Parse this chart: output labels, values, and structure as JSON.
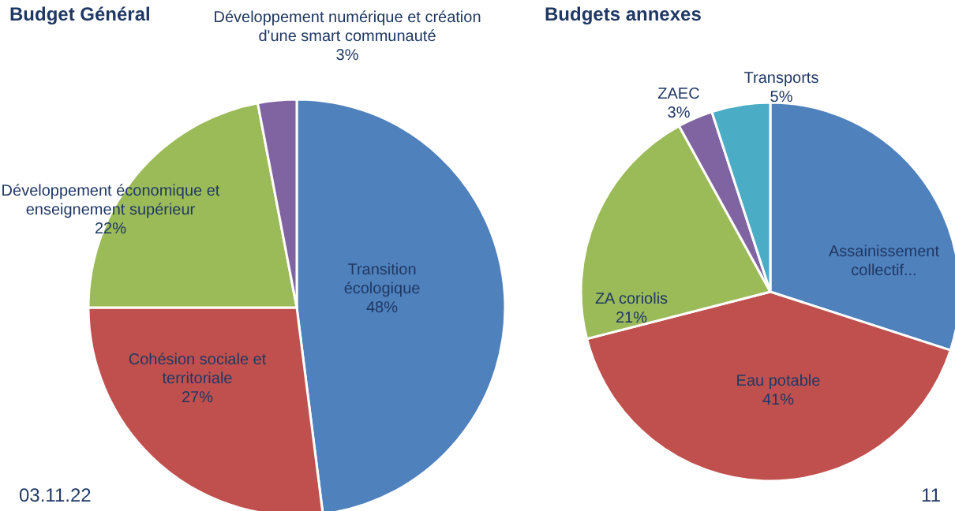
{
  "chart_data": [
    {
      "type": "pie",
      "title": "Budget Général",
      "categories": [
        "Transition écologique",
        "Cohésion sociale et territoriale",
        "Développement économique et enseignement supérieur",
        "Développement numérique et création d'une smart communauté"
      ],
      "values": [
        48,
        27,
        22,
        3
      ],
      "colors": [
        "#4f81bd",
        "#c0504d",
        "#9bbb59",
        "#8064a2"
      ],
      "value_labels": [
        "48%",
        "27%",
        "22%",
        "3%"
      ],
      "annotations": [
        "03.11.22"
      ]
    },
    {
      "type": "pie",
      "title": "Budgets annexes",
      "categories": [
        "Assainissement collectif...",
        "Eau potable",
        "ZA coriolis",
        "ZAEC",
        "Transports"
      ],
      "values": [
        30,
        41,
        21,
        3,
        5
      ],
      "colors": [
        "#4f81bd",
        "#c0504d",
        "#9bbb59",
        "#8064a2",
        "#4bacc6"
      ],
      "value_labels": [
        null,
        "41%",
        "21%",
        "3%",
        "5%"
      ],
      "annotations": [
        "11"
      ]
    }
  ]
}
